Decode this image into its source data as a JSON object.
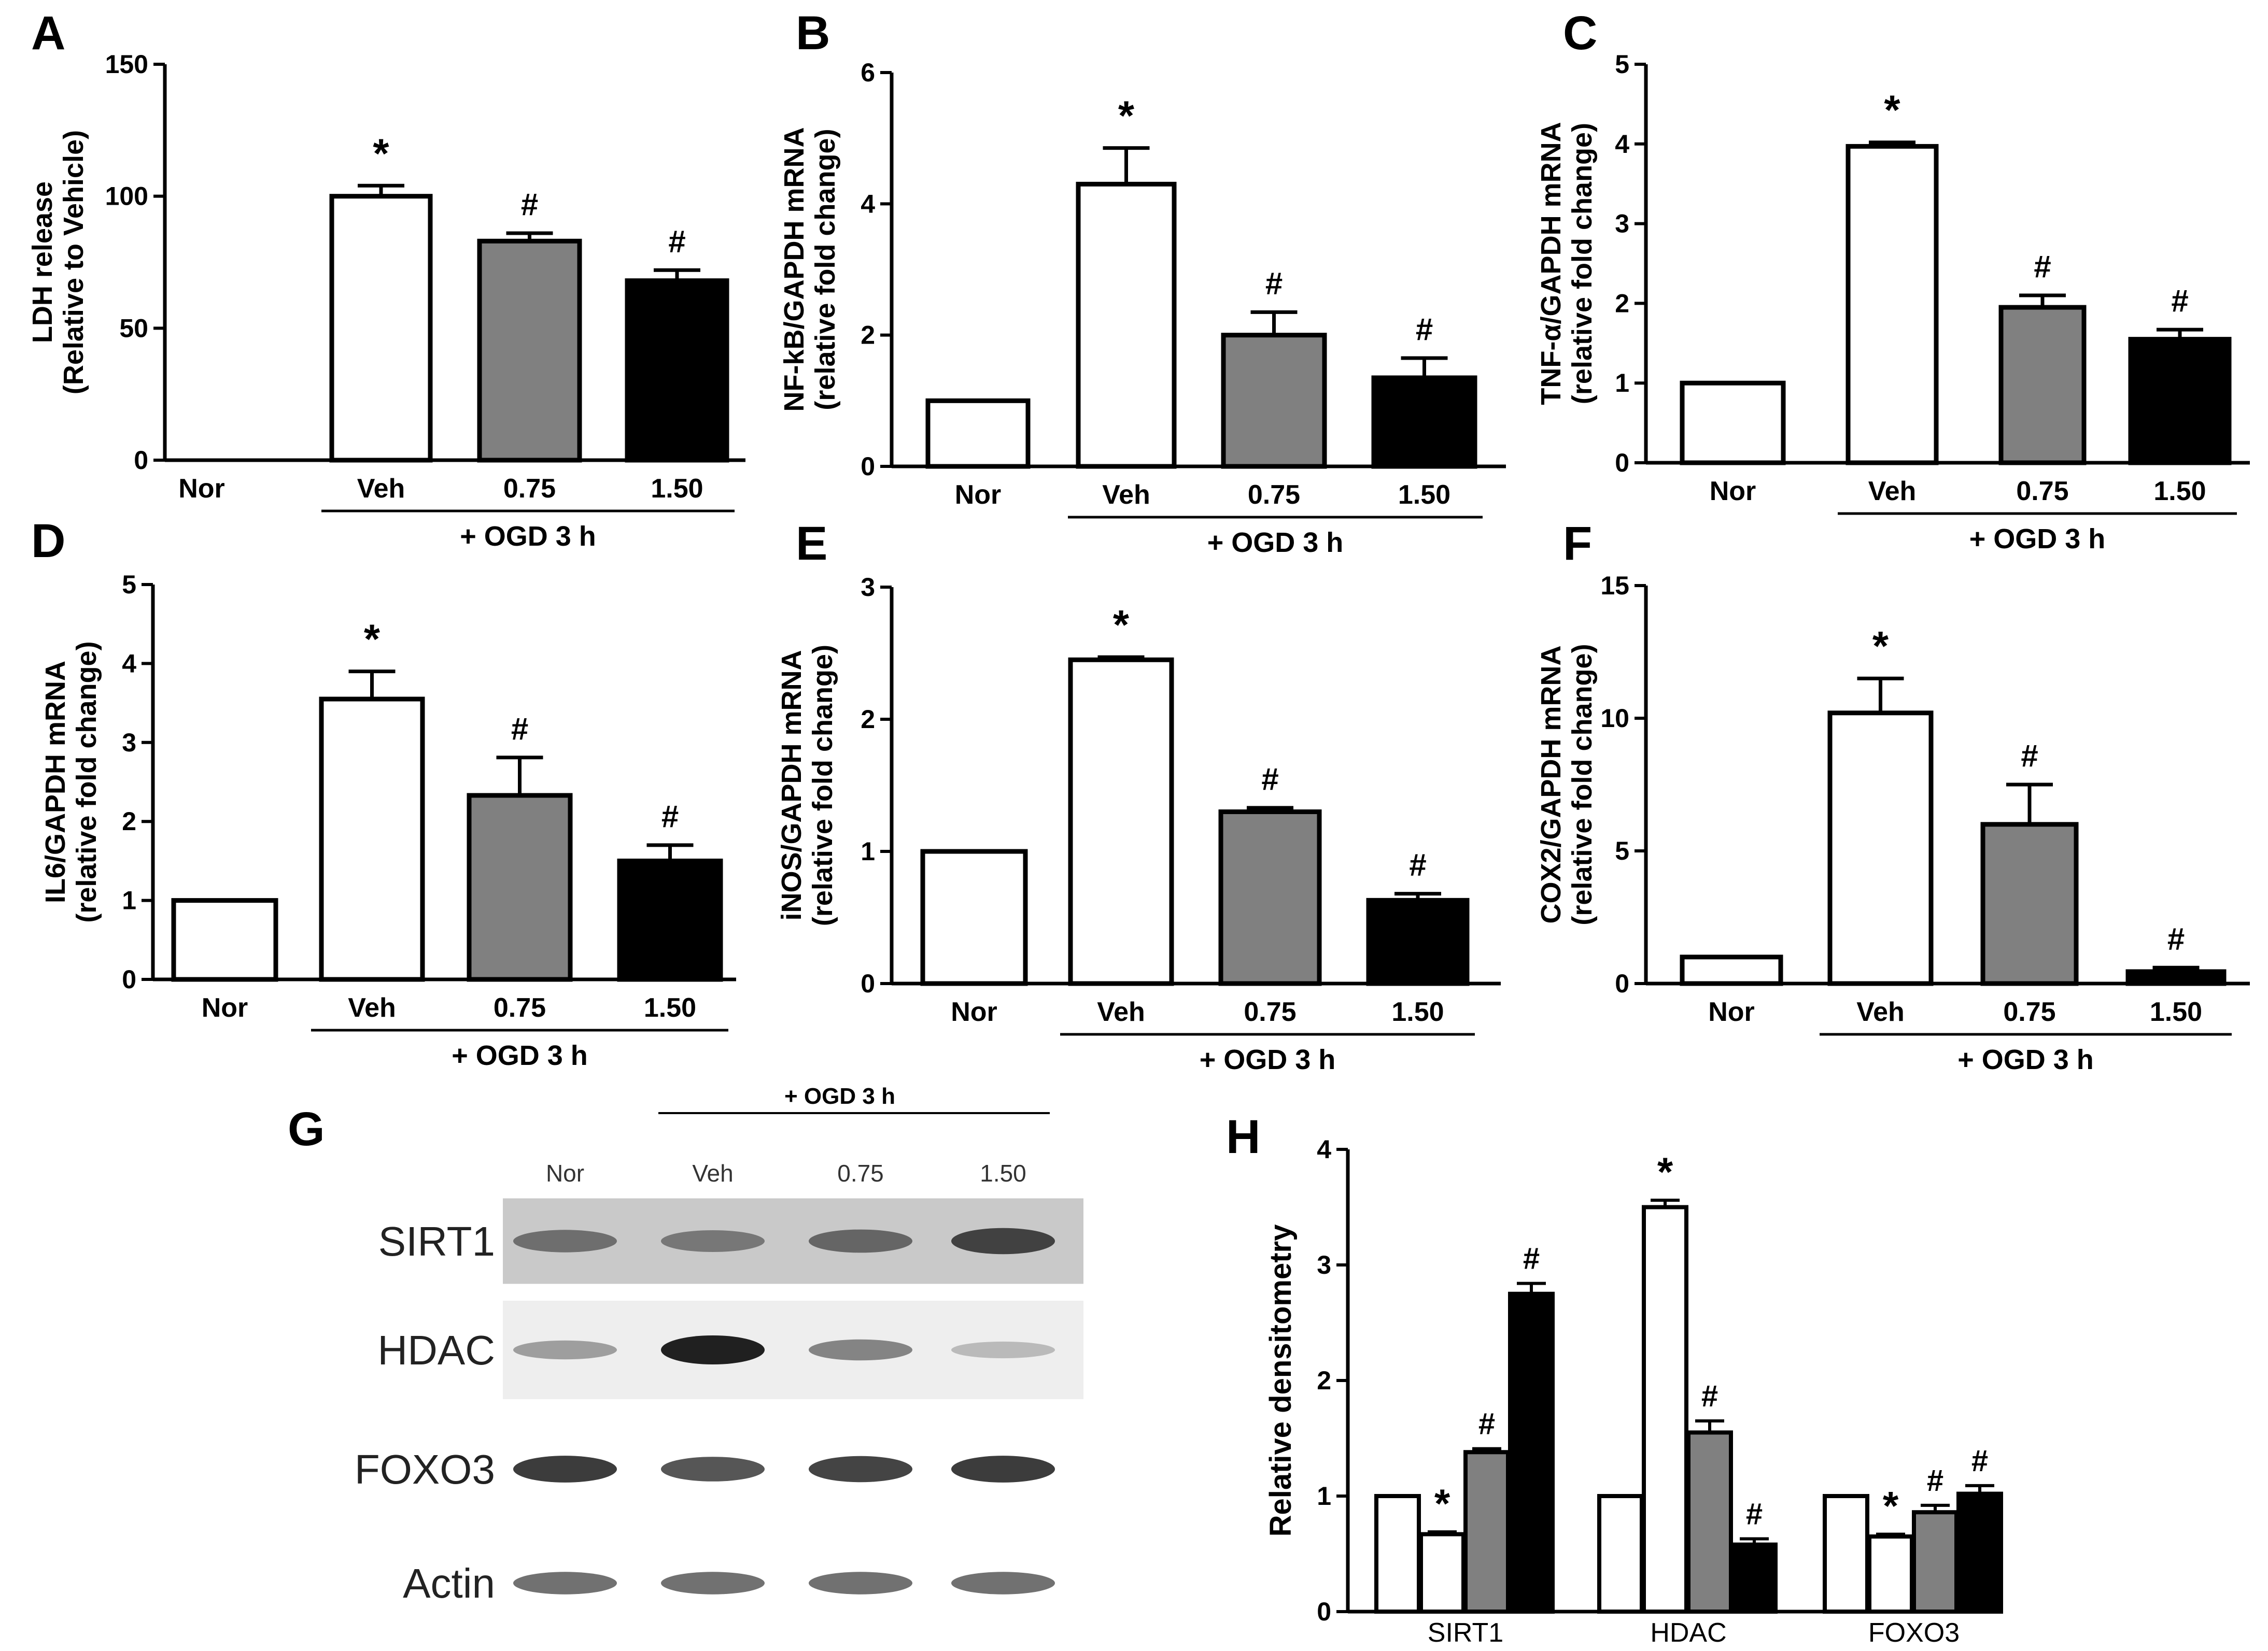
{
  "chart_data": [
    {
      "panel": "A",
      "type": "bar",
      "ylabel": [
        "LDH release",
        "(Relative to Vehicle)"
      ],
      "ylim": [
        0,
        150
      ],
      "yticks": [
        0,
        50,
        100,
        150
      ],
      "categories": [
        "Nor",
        "Veh",
        "0.75",
        "1.50"
      ],
      "values": [
        0,
        100,
        83,
        68
      ],
      "errors": [
        0,
        4,
        3,
        4
      ],
      "annotations": [
        "",
        "*",
        "#",
        "#"
      ],
      "fills": [
        "#ffffff",
        "#ffffff",
        "#808080",
        "#000000"
      ],
      "group_label": "+ OGD  3 h"
    },
    {
      "panel": "B",
      "type": "bar",
      "ylabel": [
        "NF-kB/GAPDH mRNA",
        "(relative fold change)"
      ],
      "ylim": [
        0,
        6
      ],
      "yticks": [
        0,
        2,
        4,
        6
      ],
      "categories": [
        "Nor",
        "Veh",
        "0.75",
        "1.50"
      ],
      "values": [
        1.0,
        4.3,
        2.0,
        1.35
      ],
      "errors": [
        0,
        0.55,
        0.35,
        0.3
      ],
      "annotations": [
        "",
        "*",
        "#",
        "#"
      ],
      "fills": [
        "#ffffff",
        "#ffffff",
        "#808080",
        "#000000"
      ],
      "group_label": "+ OGD  3 h"
    },
    {
      "panel": "C",
      "type": "bar",
      "ylabel": [
        "TNF-α/GAPDH mRNA",
        "(relative fold change)"
      ],
      "ylim": [
        0,
        5
      ],
      "yticks": [
        0,
        1,
        2,
        3,
        4,
        5
      ],
      "categories": [
        "Nor",
        "Veh",
        "0.75",
        "1.50"
      ],
      "values": [
        1.0,
        3.97,
        1.95,
        1.55
      ],
      "errors": [
        0,
        0.05,
        0.15,
        0.12
      ],
      "annotations": [
        "",
        "*",
        "#",
        "#"
      ],
      "fills": [
        "#ffffff",
        "#ffffff",
        "#808080",
        "#000000"
      ],
      "group_label": "+ OGD  3 h"
    },
    {
      "panel": "D",
      "type": "bar",
      "ylabel": [
        "IL6/GAPDH mRNA",
        "(relative fold change)"
      ],
      "ylim": [
        0,
        5
      ],
      "yticks": [
        0,
        1,
        2,
        3,
        4,
        5
      ],
      "categories": [
        "Nor",
        "Veh",
        "0.75",
        "1.50"
      ],
      "values": [
        1.0,
        3.55,
        2.33,
        1.5
      ],
      "errors": [
        0,
        0.35,
        0.48,
        0.2
      ],
      "annotations": [
        "",
        "*",
        "#",
        "#"
      ],
      "fills": [
        "#ffffff",
        "#ffffff",
        "#808080",
        "#000000"
      ],
      "group_label": "+ OGD  3 h"
    },
    {
      "panel": "E",
      "type": "bar",
      "ylabel": [
        "iNOS/GAPDH mRNA",
        "(relative fold change)"
      ],
      "ylim": [
        0,
        3
      ],
      "yticks": [
        0,
        1,
        2,
        3
      ],
      "categories": [
        "Nor",
        "Veh",
        "0.75",
        "1.50"
      ],
      "values": [
        1.0,
        2.45,
        1.3,
        0.63
      ],
      "errors": [
        0,
        0.02,
        0.03,
        0.05
      ],
      "annotations": [
        "",
        "*",
        "#",
        "#"
      ],
      "fills": [
        "#ffffff",
        "#ffffff",
        "#808080",
        "#000000"
      ],
      "group_label": "+ OGD  3 h"
    },
    {
      "panel": "F",
      "type": "bar",
      "ylabel": [
        "COX2/GAPDH mRNA",
        "(relative fold change)"
      ],
      "ylim": [
        0,
        15
      ],
      "yticks": [
        0,
        5,
        10,
        15
      ],
      "categories": [
        "Nor",
        "Veh",
        "0.75",
        "1.50"
      ],
      "values": [
        1.0,
        10.2,
        6.0,
        0.45
      ],
      "errors": [
        0,
        1.3,
        1.5,
        0.15
      ],
      "annotations": [
        "",
        "*",
        "#",
        "#"
      ],
      "fills": [
        "#ffffff",
        "#ffffff",
        "#808080",
        "#000000"
      ],
      "group_label": "+ OGD  3 h"
    },
    {
      "panel": "H",
      "type": "bar",
      "ylabel": [
        "Relative densitometry"
      ],
      "ylim": [
        0,
        4
      ],
      "yticks": [
        0,
        1,
        2,
        3,
        4
      ],
      "categories": [
        "SIRT1",
        "HDAC",
        "FOXO3"
      ],
      "series": [
        {
          "values": [
            1.0,
            1.0,
            1.0
          ],
          "errors": [
            0,
            0,
            0
          ],
          "annotations": [
            "",
            "",
            ""
          ],
          "fill": "#ffffff"
        },
        {
          "values": [
            0.67,
            3.5,
            0.65
          ],
          "errors": [
            0.02,
            0.06,
            0.02
          ],
          "annotations": [
            "*",
            "*",
            "*"
          ],
          "fill": "#ffffff"
        },
        {
          "values": [
            1.38,
            1.55,
            0.86
          ],
          "errors": [
            0.03,
            0.1,
            0.06
          ],
          "annotations": [
            "#",
            "#",
            "#"
          ],
          "fill": "#808080"
        },
        {
          "values": [
            2.75,
            0.58,
            1.02
          ],
          "errors": [
            0.09,
            0.05,
            0.07
          ],
          "annotations": [
            "#",
            "#",
            "#"
          ],
          "fill": "#000000"
        }
      ]
    }
  ],
  "blot": {
    "panel": "G",
    "group_label": "+ OGD  3 h",
    "lanes": [
      "Nor",
      "Veh",
      "0.75",
      "1.50"
    ],
    "rows": [
      {
        "label": "SIRT1",
        "intensity": [
          0.55,
          0.5,
          0.6,
          0.8
        ],
        "background": "#c9c9c9"
      },
      {
        "label": "HDAC",
        "intensity": [
          0.3,
          1.0,
          0.45,
          0.15
        ],
        "background": "#eeeeee"
      },
      {
        "label": "FOXO3",
        "intensity": [
          0.85,
          0.7,
          0.8,
          0.85
        ],
        "background": "#ffffff"
      },
      {
        "label": "Actin",
        "intensity": [
          0.55,
          0.55,
          0.55,
          0.55
        ],
        "background": "#ffffff"
      }
    ]
  }
}
